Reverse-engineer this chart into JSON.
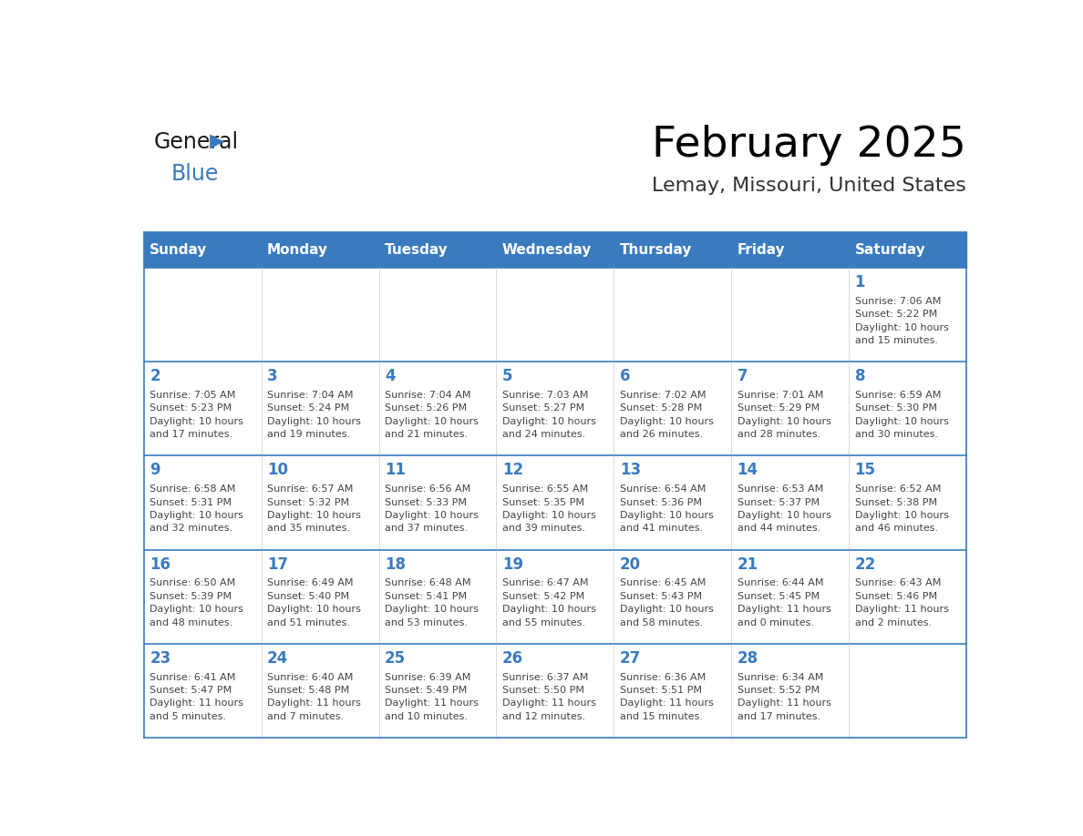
{
  "title": "February 2025",
  "subtitle": "Lemay, Missouri, United States",
  "days_of_week": [
    "Sunday",
    "Monday",
    "Tuesday",
    "Wednesday",
    "Thursday",
    "Friday",
    "Saturday"
  ],
  "header_bg": "#3a7bbf",
  "header_text": "#ffffff",
  "cell_bg": "#ffffff",
  "cell_border": "#3a7bbf",
  "day_num_color": "#3a7bbf",
  "info_color": "#444444",
  "title_color": "#000000",
  "subtitle_color": "#333333",
  "logo_general_color": "#1a1a1a",
  "logo_blue_color": "#3a7bbf",
  "weeks": [
    [
      {
        "day": null,
        "info": ""
      },
      {
        "day": null,
        "info": ""
      },
      {
        "day": null,
        "info": ""
      },
      {
        "day": null,
        "info": ""
      },
      {
        "day": null,
        "info": ""
      },
      {
        "day": null,
        "info": ""
      },
      {
        "day": 1,
        "info": "Sunrise: 7:06 AM\nSunset: 5:22 PM\nDaylight: 10 hours\nand 15 minutes."
      }
    ],
    [
      {
        "day": 2,
        "info": "Sunrise: 7:05 AM\nSunset: 5:23 PM\nDaylight: 10 hours\nand 17 minutes."
      },
      {
        "day": 3,
        "info": "Sunrise: 7:04 AM\nSunset: 5:24 PM\nDaylight: 10 hours\nand 19 minutes."
      },
      {
        "day": 4,
        "info": "Sunrise: 7:04 AM\nSunset: 5:26 PM\nDaylight: 10 hours\nand 21 minutes."
      },
      {
        "day": 5,
        "info": "Sunrise: 7:03 AM\nSunset: 5:27 PM\nDaylight: 10 hours\nand 24 minutes."
      },
      {
        "day": 6,
        "info": "Sunrise: 7:02 AM\nSunset: 5:28 PM\nDaylight: 10 hours\nand 26 minutes."
      },
      {
        "day": 7,
        "info": "Sunrise: 7:01 AM\nSunset: 5:29 PM\nDaylight: 10 hours\nand 28 minutes."
      },
      {
        "day": 8,
        "info": "Sunrise: 6:59 AM\nSunset: 5:30 PM\nDaylight: 10 hours\nand 30 minutes."
      }
    ],
    [
      {
        "day": 9,
        "info": "Sunrise: 6:58 AM\nSunset: 5:31 PM\nDaylight: 10 hours\nand 32 minutes."
      },
      {
        "day": 10,
        "info": "Sunrise: 6:57 AM\nSunset: 5:32 PM\nDaylight: 10 hours\nand 35 minutes."
      },
      {
        "day": 11,
        "info": "Sunrise: 6:56 AM\nSunset: 5:33 PM\nDaylight: 10 hours\nand 37 minutes."
      },
      {
        "day": 12,
        "info": "Sunrise: 6:55 AM\nSunset: 5:35 PM\nDaylight: 10 hours\nand 39 minutes."
      },
      {
        "day": 13,
        "info": "Sunrise: 6:54 AM\nSunset: 5:36 PM\nDaylight: 10 hours\nand 41 minutes."
      },
      {
        "day": 14,
        "info": "Sunrise: 6:53 AM\nSunset: 5:37 PM\nDaylight: 10 hours\nand 44 minutes."
      },
      {
        "day": 15,
        "info": "Sunrise: 6:52 AM\nSunset: 5:38 PM\nDaylight: 10 hours\nand 46 minutes."
      }
    ],
    [
      {
        "day": 16,
        "info": "Sunrise: 6:50 AM\nSunset: 5:39 PM\nDaylight: 10 hours\nand 48 minutes."
      },
      {
        "day": 17,
        "info": "Sunrise: 6:49 AM\nSunset: 5:40 PM\nDaylight: 10 hours\nand 51 minutes."
      },
      {
        "day": 18,
        "info": "Sunrise: 6:48 AM\nSunset: 5:41 PM\nDaylight: 10 hours\nand 53 minutes."
      },
      {
        "day": 19,
        "info": "Sunrise: 6:47 AM\nSunset: 5:42 PM\nDaylight: 10 hours\nand 55 minutes."
      },
      {
        "day": 20,
        "info": "Sunrise: 6:45 AM\nSunset: 5:43 PM\nDaylight: 10 hours\nand 58 minutes."
      },
      {
        "day": 21,
        "info": "Sunrise: 6:44 AM\nSunset: 5:45 PM\nDaylight: 11 hours\nand 0 minutes."
      },
      {
        "day": 22,
        "info": "Sunrise: 6:43 AM\nSunset: 5:46 PM\nDaylight: 11 hours\nand 2 minutes."
      }
    ],
    [
      {
        "day": 23,
        "info": "Sunrise: 6:41 AM\nSunset: 5:47 PM\nDaylight: 11 hours\nand 5 minutes."
      },
      {
        "day": 24,
        "info": "Sunrise: 6:40 AM\nSunset: 5:48 PM\nDaylight: 11 hours\nand 7 minutes."
      },
      {
        "day": 25,
        "info": "Sunrise: 6:39 AM\nSunset: 5:49 PM\nDaylight: 11 hours\nand 10 minutes."
      },
      {
        "day": 26,
        "info": "Sunrise: 6:37 AM\nSunset: 5:50 PM\nDaylight: 11 hours\nand 12 minutes."
      },
      {
        "day": 27,
        "info": "Sunrise: 6:36 AM\nSunset: 5:51 PM\nDaylight: 11 hours\nand 15 minutes."
      },
      {
        "day": 28,
        "info": "Sunrise: 6:34 AM\nSunset: 5:52 PM\nDaylight: 11 hours\nand 17 minutes."
      },
      {
        "day": null,
        "info": ""
      }
    ]
  ]
}
